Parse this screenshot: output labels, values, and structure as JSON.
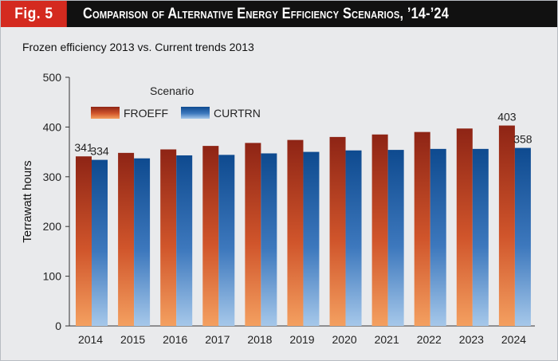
{
  "header": {
    "fig_label": "Fig. 5",
    "title": "Comparison of Alternative Energy Efficiency Scenarios, ’14-’24"
  },
  "colors": {
    "header_bg": "#111111",
    "fig_label_bg": "#d42a1f",
    "froeff_top": "#8e2415",
    "froeff_bottom": "#f4a060",
    "curtrn_top": "#0e4a8f",
    "curtrn_bottom": "#a6c8ea"
  },
  "chart_data": {
    "type": "bar",
    "title": "Frozen efficiency 2013 vs. Current trends 2013",
    "xlabel": "",
    "ylabel": "Terrawatt hours",
    "ylim": [
      0,
      500
    ],
    "yticks": [
      0,
      100,
      200,
      300,
      400,
      500
    ],
    "grid": false,
    "legend": {
      "title": "Scenario",
      "placement": "top-left"
    },
    "categories": [
      "2014",
      "2015",
      "2016",
      "2017",
      "2018",
      "2019",
      "2020",
      "2021",
      "2022",
      "2023",
      "2024"
    ],
    "series": [
      {
        "name": "FROEFF",
        "values": [
          341,
          348,
          355,
          362,
          368,
          374,
          380,
          385,
          390,
          397,
          403
        ]
      },
      {
        "name": "CURTRN",
        "values": [
          334,
          337,
          343,
          344,
          347,
          350,
          353,
          354,
          356,
          356,
          358
        ]
      }
    ],
    "data_labels": [
      {
        "series": 0,
        "index": 0,
        "text": "341"
      },
      {
        "series": 1,
        "index": 0,
        "text": "334"
      },
      {
        "series": 0,
        "index": 10,
        "text": "403"
      },
      {
        "series": 1,
        "index": 10,
        "text": "358"
      }
    ]
  }
}
